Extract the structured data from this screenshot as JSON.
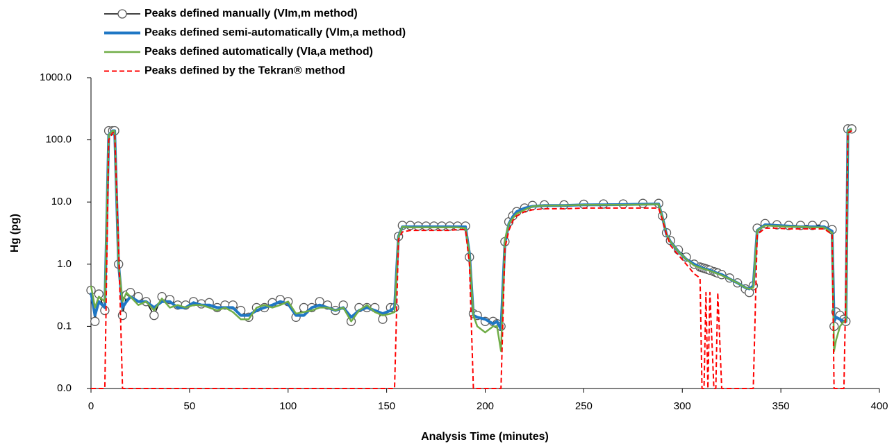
{
  "chart_data": {
    "type": "line",
    "x_label": "Analysis Time (minutes)",
    "y_label": "Hg (pg)",
    "log_y": true,
    "grid": false,
    "legend": "top-left",
    "xlim": [
      0,
      400
    ],
    "xticks": [
      0,
      50,
      100,
      150,
      200,
      250,
      300,
      350,
      400
    ],
    "ylim": [
      0.01,
      1000
    ],
    "yticks": [
      {
        "value": 0.01,
        "label": "0.0"
      },
      {
        "value": 0.1,
        "label": "0.1"
      },
      {
        "value": 1,
        "label": "1.0"
      },
      {
        "value": 10,
        "label": "10.0"
      },
      {
        "value": 100,
        "label": "100.0"
      },
      {
        "value": 1000,
        "label": "1000.0"
      }
    ],
    "x": [
      0,
      2,
      4,
      7,
      9,
      11,
      12,
      14,
      16,
      18,
      20,
      24,
      28,
      32,
      36,
      40,
      44,
      48,
      52,
      56,
      60,
      64,
      68,
      72,
      76,
      80,
      84,
      88,
      92,
      96,
      100,
      104,
      108,
      112,
      116,
      120,
      124,
      128,
      132,
      136,
      140,
      144,
      148,
      152,
      154,
      156,
      158,
      162,
      166,
      170,
      174,
      178,
      182,
      186,
      190,
      192,
      194,
      196,
      200,
      204,
      206,
      208,
      210,
      212,
      214,
      216,
      220,
      224,
      230,
      240,
      250,
      260,
      270,
      280,
      288,
      290,
      292,
      294,
      298,
      302,
      306,
      309,
      310,
      311,
      312,
      313,
      314,
      316,
      317,
      318,
      320,
      324,
      328,
      332,
      334,
      336,
      338,
      342,
      348,
      354,
      360,
      366,
      372,
      376,
      377,
      378,
      380,
      382,
      383,
      384,
      386
    ],
    "series": [
      {
        "name": "Peaks defined manually (VIm,m method)",
        "color": "#000000",
        "marker": "circle",
        "marker_color": "#595959",
        "values": [
          0.38,
          0.12,
          0.33,
          0.18,
          140,
          140,
          140,
          1,
          0.15,
          0.32,
          0.35,
          0.3,
          0.25,
          0.15,
          0.3,
          0.27,
          0.22,
          0.22,
          0.25,
          0.23,
          0.24,
          0.2,
          0.22,
          0.22,
          0.18,
          0.14,
          0.2,
          0.2,
          0.24,
          0.27,
          0.25,
          0.14,
          0.2,
          0.2,
          0.25,
          0.22,
          0.18,
          0.22,
          0.12,
          0.2,
          0.2,
          0.2,
          0.13,
          0.2,
          0.2,
          2.8,
          4.2,
          4.2,
          4.1,
          4.1,
          4.1,
          4.1,
          4.1,
          4.1,
          4.1,
          1.3,
          0.16,
          0.15,
          0.12,
          0.12,
          0.11,
          0.1,
          2.3,
          4.8,
          6,
          7,
          8,
          8.8,
          9,
          9,
          9.2,
          9.3,
          9.3,
          9.5,
          9.5,
          6,
          3.2,
          2.4,
          1.7,
          1.3,
          1,
          0.9,
          0.88,
          0.86,
          0.84,
          0.82,
          0.8,
          0.76,
          0.74,
          0.72,
          0.68,
          0.6,
          0.5,
          0.4,
          0.35,
          0.45,
          3.8,
          4.5,
          4.3,
          4.2,
          4.2,
          4.2,
          4.3,
          3.6,
          0.1,
          0.17,
          0.15,
          0.13,
          0.12,
          150,
          150
        ]
      },
      {
        "name": "Peaks defined semi-automatically (VIm,a method)",
        "color": "#1f77c4",
        "values": [
          0.35,
          0.15,
          0.25,
          0.2,
          120,
          140,
          140,
          1,
          0.2,
          0.25,
          0.3,
          0.25,
          0.25,
          0.2,
          0.25,
          0.25,
          0.2,
          0.2,
          0.24,
          0.22,
          0.22,
          0.2,
          0.2,
          0.2,
          0.15,
          0.15,
          0.18,
          0.2,
          0.22,
          0.25,
          0.23,
          0.15,
          0.15,
          0.2,
          0.22,
          0.2,
          0.18,
          0.2,
          0.14,
          0.18,
          0.2,
          0.18,
          0.16,
          0.18,
          0.2,
          2.8,
          4,
          4,
          4,
          4,
          4,
          4,
          4,
          4,
          4,
          1.5,
          0.15,
          0.14,
          0.13,
          0.11,
          0.12,
          0.09,
          2.2,
          4.5,
          5.8,
          7,
          8,
          8.5,
          8.8,
          8.8,
          9,
          9,
          9.1,
          9.2,
          9.3,
          5.5,
          3,
          2.3,
          1.6,
          1.2,
          1,
          0.9,
          0.87,
          0.85,
          0.83,
          0.82,
          0.8,
          0.75,
          0.73,
          0.71,
          0.68,
          0.58,
          0.5,
          0.42,
          0.4,
          0.45,
          3.5,
          4.3,
          4.2,
          4.1,
          4,
          4,
          4,
          3.4,
          0.12,
          0.14,
          0.13,
          0.12,
          0.12,
          140,
          150
        ]
      },
      {
        "name": "Peaks defined automatically (VIa,a method)",
        "color": "#70ad47",
        "values": [
          0.45,
          0.2,
          0.3,
          0.25,
          120,
          140,
          140,
          1,
          0.25,
          0.35,
          0.3,
          0.22,
          0.25,
          0.18,
          0.28,
          0.2,
          0.22,
          0.2,
          0.22,
          0.22,
          0.2,
          0.18,
          0.2,
          0.17,
          0.13,
          0.13,
          0.2,
          0.22,
          0.2,
          0.22,
          0.25,
          0.16,
          0.17,
          0.18,
          0.2,
          0.2,
          0.18,
          0.2,
          0.12,
          0.18,
          0.22,
          0.17,
          0.15,
          0.16,
          0.17,
          2.8,
          4,
          3.9,
          3.9,
          3.9,
          3.9,
          3.9,
          3.9,
          3.9,
          3.8,
          1.5,
          0.15,
          0.1,
          0.08,
          0.1,
          0.1,
          0.04,
          2.5,
          4.5,
          5.5,
          6.5,
          7.5,
          8.5,
          8.8,
          8.8,
          9,
          9,
          9,
          9.1,
          9.2,
          5.5,
          3,
          2.3,
          1.6,
          1.2,
          0.95,
          0.88,
          0.85,
          0.84,
          0.82,
          0.8,
          0.78,
          0.74,
          0.72,
          0.7,
          0.66,
          0.58,
          0.5,
          0.42,
          0.4,
          0.42,
          3.5,
          4.2,
          4.1,
          4,
          4,
          3.9,
          3.9,
          3.2,
          0.04,
          0.06,
          0.1,
          0.12,
          0.12,
          140,
          150
        ]
      },
      {
        "name": "Peaks defined by the Tekran® method",
        "color": "#ff0000",
        "dashed": true,
        "values": [
          0.01,
          0.01,
          0.01,
          0.01,
          100,
          130,
          130,
          2,
          0.01,
          0.01,
          0.01,
          0.01,
          0.01,
          0.01,
          0.01,
          0.01,
          0.01,
          0.01,
          0.01,
          0.01,
          0.01,
          0.01,
          0.01,
          0.01,
          0.01,
          0.01,
          0.01,
          0.01,
          0.01,
          0.01,
          0.01,
          0.01,
          0.01,
          0.01,
          0.01,
          0.01,
          0.01,
          0.01,
          0.01,
          0.01,
          0.01,
          0.01,
          0.01,
          0.01,
          0.01,
          2.5,
          3.3,
          3.5,
          3.5,
          3.5,
          3.5,
          3.5,
          3.5,
          3.6,
          3.6,
          1,
          0.01,
          0.01,
          0.01,
          0.01,
          0.01,
          0.01,
          1.8,
          3.5,
          5,
          6,
          7,
          7.5,
          7.8,
          7.8,
          8,
          8,
          8,
          8,
          8,
          5,
          3,
          2,
          1.4,
          1,
          0.7,
          0.6,
          0.01,
          0.01,
          0.35,
          0.01,
          0.35,
          0.01,
          0.01,
          0.35,
          0.01,
          0.01,
          0.01,
          0.01,
          0.01,
          0.01,
          3,
          3.8,
          3.8,
          3.7,
          3.7,
          3.7,
          3.7,
          3,
          0.01,
          0.01,
          0.01,
          0.01,
          0.5,
          130,
          140
        ]
      }
    ]
  }
}
